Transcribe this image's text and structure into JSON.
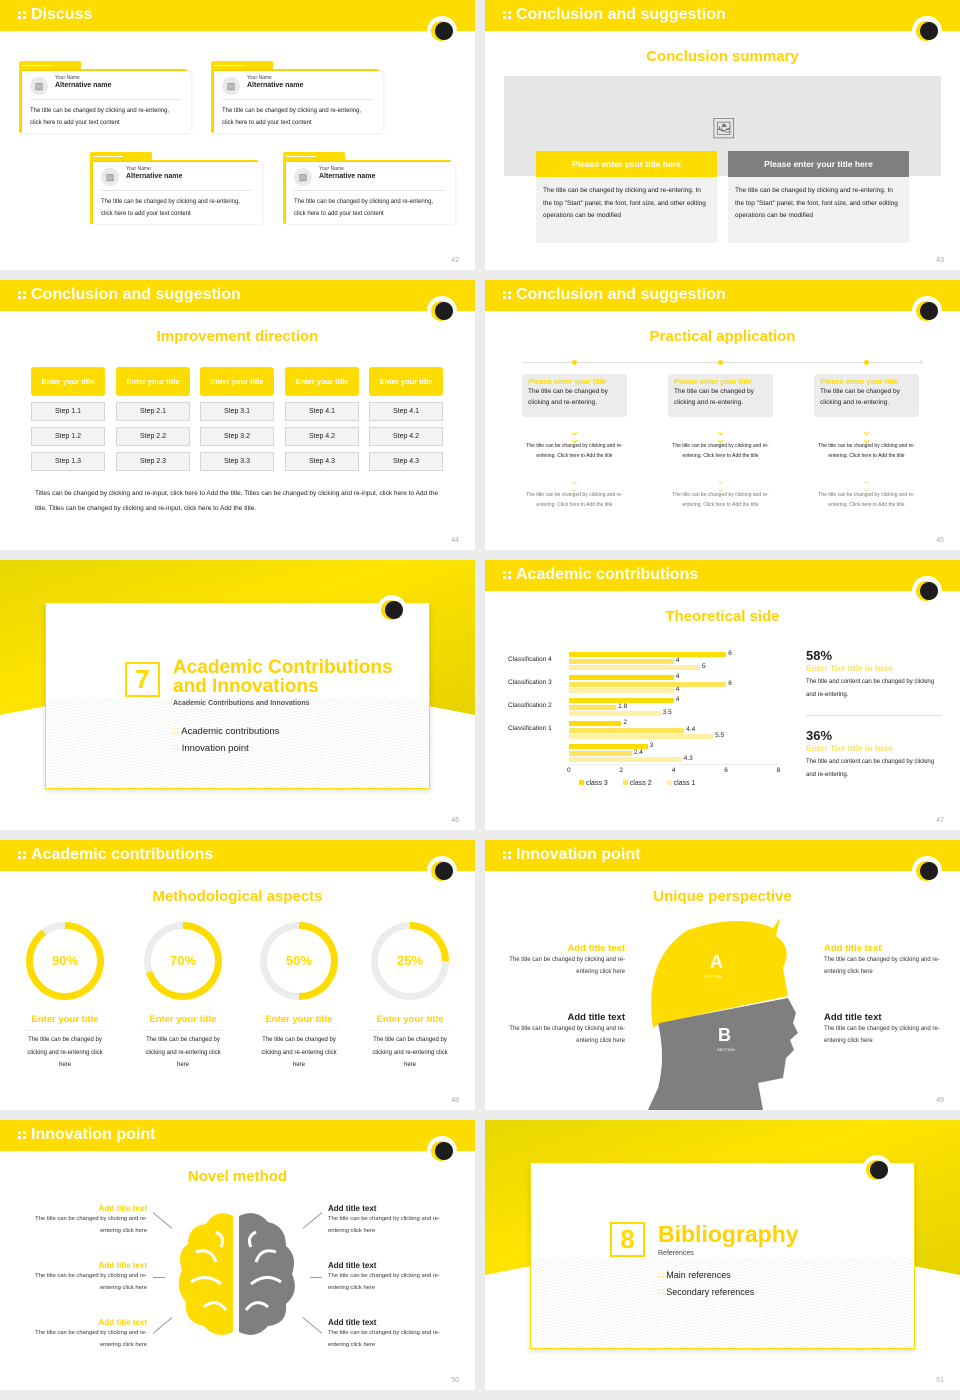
{
  "colors": {
    "accent": "#ffdc00",
    "dark": "#1d1d1d",
    "gray": "#7f7f7f",
    "light_gray": "#ececec"
  },
  "slides": {
    "s42": {
      "header": "Discuss",
      "page": "42",
      "cards": [
        {
          "name": "Your Name",
          "alt": "Alternative name",
          "text": "The title can be changed by clicking and re-entering, click here to add your text content"
        },
        {
          "name": "Your Name",
          "alt": "Alternative name",
          "text": "The title can be changed by clicking and re-entering, click here to add your text content"
        },
        {
          "name": "Your Name",
          "alt": "Alternative name",
          "text": "The title can be changed by clicking and re-entering, click here to add your text content"
        },
        {
          "name": "Your Name",
          "alt": "Alternative name",
          "text": "The title can be changed by clicking and re-entering, click here to add your text content"
        }
      ]
    },
    "s43": {
      "header": "Conclusion and suggestion",
      "subtitle": "Conclusion summary",
      "page": "43",
      "panels": [
        {
          "title": "Please enter your title here",
          "text": "The title can be changed by clicking and re-entering. In the top \"Start\" panel, the font, font size, and other editing operations can be modified"
        },
        {
          "title": "Please enter your title here",
          "text": "The title can be changed by clicking and re-entering. In the top \"Start\" panel, the font, font size, and other editing operations can be modified"
        }
      ]
    },
    "s44": {
      "header": "Conclusion and suggestion",
      "subtitle": "Improvement direction",
      "page": "44",
      "columns": [
        {
          "title": "Enter your title",
          "steps": [
            "Step 1.1",
            "Step 1.2",
            "Step 1.3"
          ]
        },
        {
          "title": "Enter your title",
          "steps": [
            "Step 2.1",
            "Step 2.2",
            "Step 2.3"
          ]
        },
        {
          "title": "Enter your title",
          "steps": [
            "Step 3.1",
            "Step 3.2",
            "Step 3.3"
          ]
        },
        {
          "title": "Enter your title",
          "steps": [
            "Step 4.1",
            "Step 4.2",
            "Step 4.3"
          ]
        },
        {
          "title": "Enter your title",
          "steps": [
            "Step 4.1",
            "Step 4.2",
            "Step 4.3"
          ]
        }
      ],
      "footer": "Titles can be changed by clicking and re-input, click here to Add the title. Titles can be changed by clicking and re-input, click here to Add the title. Titles can be changed by clicking and re-input, click here to Add the title."
    },
    "s45": {
      "header": "Conclusion and suggestion",
      "subtitle": "Practical application",
      "page": "45",
      "items": [
        {
          "title": "Please enter your title",
          "text": "The title can be changed by clicking and re-entering.",
          "step1": "The title can be changed by clicking and re-entering. Click here to Add the title",
          "step2": "The title can be changed by clicking and re-entering. Click here to Add the title"
        },
        {
          "title": "Please enter your title",
          "text": "The title can be changed by clicking and re-entering.",
          "step1": "The title can be changed by clicking and re-entering. Click here to Add the title",
          "step2": "The title can be changed by clicking and re-entering. Click here to Add the title"
        },
        {
          "title": "Please enter your title",
          "text": "The title can be changed by clicking and re-entering.",
          "step1": "The title can be changed by clicking and re-entering. Click here to Add the title",
          "step2": "The title can be changed by clicking and re-entering. Click here to Add the title"
        }
      ]
    },
    "s46": {
      "number": "7",
      "title_line1": "Academic Contributions",
      "title_line2": "and Innovations",
      "subtitle": "Academic Contributions and Innovations",
      "bullets": [
        "Academic contributions",
        "Innovation point"
      ],
      "page": "46"
    },
    "s47": {
      "header": "Academic contributions",
      "subtitle": "Theoretical side",
      "page": "47",
      "stats": [
        {
          "value": "58%",
          "title": "Enter The title in here",
          "text": "The title and content can be changed by clicking and re-entering."
        },
        {
          "value": "36%",
          "title": "Enter The title in here",
          "text": "The title and content can be changed by clicking and re-entering."
        }
      ]
    },
    "s48": {
      "header": "Academic contributions",
      "subtitle": "Methodological aspects",
      "page": "48",
      "donuts": [
        {
          "value": "90%",
          "title": "Enter your title",
          "text": "The title can be changed by clicking and re-entering click here"
        },
        {
          "value": "70%",
          "title": "Enter your title",
          "text": "The title can be changed by clicking and re-entering click here"
        },
        {
          "value": "50%",
          "title": "Enter your title",
          "text": "The title can be changed by clicking and re-entering click here"
        },
        {
          "value": "25%",
          "title": "Enter your title",
          "text": "The title can be changed by clicking and re-entering click here"
        }
      ]
    },
    "s49": {
      "header": "Innovation point",
      "subtitle": "Unique perspective",
      "page": "49",
      "head_a": "A",
      "head_b": "B",
      "section_label": "SECTION",
      "left": [
        {
          "title": "Add title text",
          "text": "The title can be changed by clicking and re-entering click here"
        },
        {
          "title": "Add title text",
          "text": "The title can be changed by clicking and re-entering click here"
        }
      ],
      "right": [
        {
          "title": "Add title text",
          "text": "The title can be changed by clicking and re-entering click here"
        },
        {
          "title": "Add title text",
          "text": "The title can be changed by clicking and re-entering click here"
        }
      ]
    },
    "s50": {
      "header": "Innovation point",
      "subtitle": "Novel method",
      "page": "50",
      "left": [
        {
          "title": "Add title text",
          "text": "The title can be changed by clicking and re-entering click here"
        },
        {
          "title": "Add title text",
          "text": "The title can be changed by clicking and re-entering click here"
        },
        {
          "title": "Add title text",
          "text": "The title can be changed by clicking and re-entering click here"
        }
      ],
      "right": [
        {
          "title": "Add title text",
          "text": "The title can be changed by clicking and re-entering click here"
        },
        {
          "title": "Add title text",
          "text": "The title can be changed by clicking and re-entering click here"
        },
        {
          "title": "Add title text",
          "text": "The title can be changed by clicking and re-entering click here"
        }
      ]
    },
    "s51": {
      "number": "8",
      "title": "Bibliography",
      "subtitle": "References",
      "bullets": [
        "Main references",
        "Secondary references"
      ],
      "page": "51"
    }
  },
  "chart_data": {
    "type": "bar",
    "orientation": "horizontal",
    "title": "Theoretical side",
    "categories": [
      "(unlabeled)",
      "Classification 1",
      "Classification 2",
      "Classification 3",
      "Classification 4"
    ],
    "series": [
      {
        "name": "class 3",
        "color": "#ffdc00",
        "values": [
          3,
          2,
          4,
          4,
          6
        ]
      },
      {
        "name": "class 2",
        "color": "#ffe45c",
        "values": [
          2.4,
          4.4,
          1.8,
          6,
          4
        ]
      },
      {
        "name": "class 1",
        "color": "#fff0a6",
        "values": [
          4.3,
          5.5,
          3.5,
          4,
          5
        ]
      }
    ],
    "xlim": [
      0,
      8
    ],
    "xticks": [
      "0",
      "2",
      "4",
      "6",
      "8"
    ],
    "grid": false,
    "legend_position": "bottom"
  }
}
